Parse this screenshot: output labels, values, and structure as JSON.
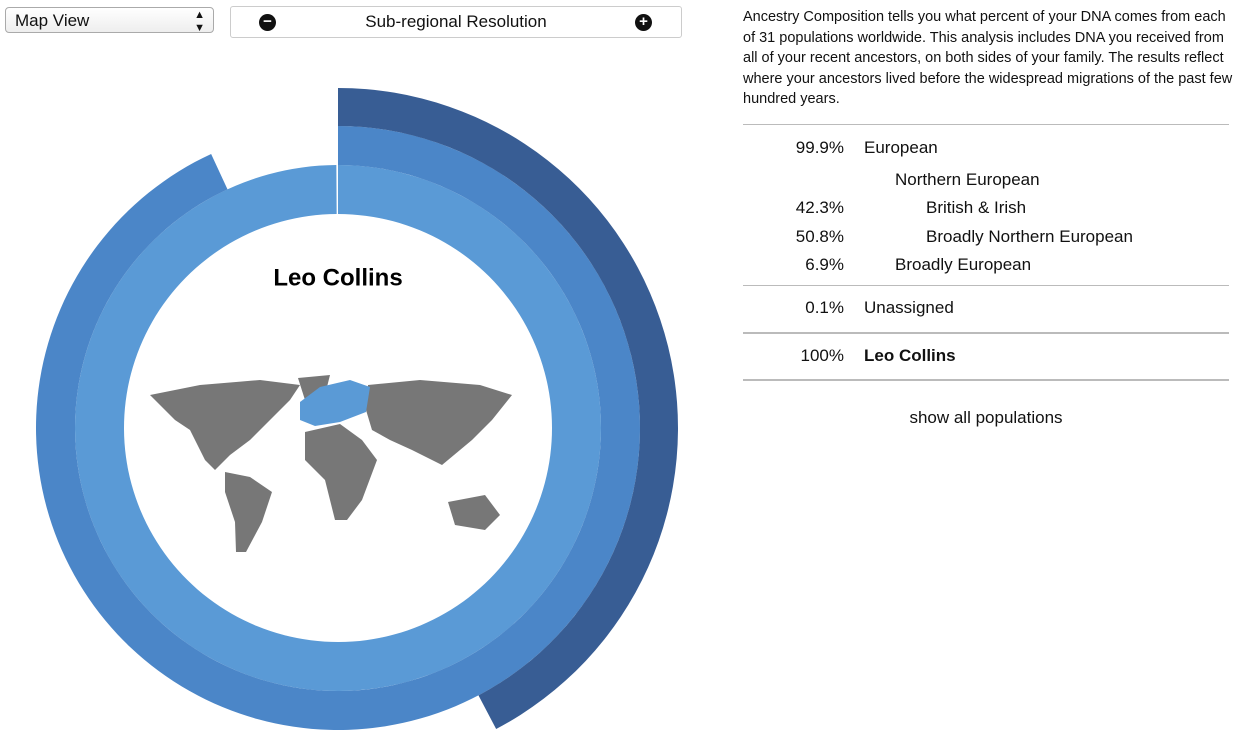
{
  "controls": {
    "view": "Map View",
    "resolution": "Sub-regional Resolution"
  },
  "description": "Ancestry Composition tells you what percent of your DNA comes from each of 31 populations worldwide. This analysis includes DNA you received from all of your recent ancestors, on both sides of your family. The results reflect where your ancestors lived before the widespread migrations of the past few hundred years.",
  "table": {
    "rows": [
      {
        "percent": {
          "value": 99.9,
          "label": "99.9%"
        },
        "name": "European"
      },
      {
        "name": "Northern European"
      },
      {
        "percent": {
          "value": 42.3,
          "label": "42.3%"
        },
        "name": "British & Irish"
      },
      {
        "percent": {
          "value": 50.8,
          "label": "50.8%"
        },
        "name": "Broadly Northern European"
      },
      {
        "percent": {
          "value": 6.9,
          "label": "6.9%"
        },
        "name": "Broadly European"
      },
      {
        "percent": {
          "value": 0.1,
          "label": "0.1%"
        },
        "name": "Unassigned"
      }
    ],
    "total": {
      "percent": {
        "value": 100,
        "label": "100%"
      },
      "name": "Leo Collins"
    }
  },
  "show_all": "show all populations"
}
